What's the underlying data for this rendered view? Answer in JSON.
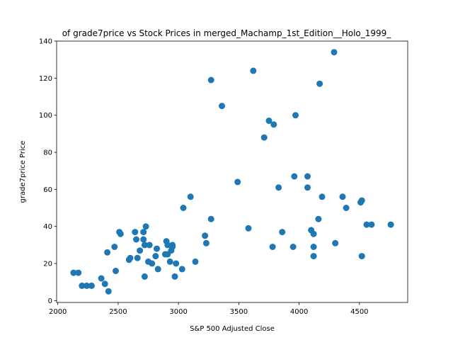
{
  "chart_data": {
    "type": "scatter",
    "title": "of grade7price vs Stock Prices in merged_Machamp_1st_Edition__Holo_1999_",
    "xlabel": "S&P 500 Adjusted Close",
    "ylabel": "grade7price Price",
    "xlim": [
      1990,
      4900
    ],
    "ylim": [
      -1,
      140
    ],
    "xticks": [
      2000,
      2500,
      3000,
      3500,
      4000,
      4500
    ],
    "yticks": [
      0,
      20,
      40,
      60,
      80,
      100,
      120,
      140
    ],
    "grid": false,
    "marker_color": "#1f77b4",
    "points": [
      [
        2130,
        15
      ],
      [
        2170,
        15
      ],
      [
        2200,
        8
      ],
      [
        2240,
        8
      ],
      [
        2280,
        8
      ],
      [
        2360,
        12
      ],
      [
        2390,
        9
      ],
      [
        2410,
        26
      ],
      [
        2420,
        5
      ],
      [
        2470,
        29
      ],
      [
        2480,
        16
      ],
      [
        2510,
        37
      ],
      [
        2520,
        36
      ],
      [
        2590,
        22
      ],
      [
        2600,
        23
      ],
      [
        2640,
        37
      ],
      [
        2650,
        33
      ],
      [
        2660,
        23
      ],
      [
        2680,
        27
      ],
      [
        2710,
        37
      ],
      [
        2710,
        33
      ],
      [
        2720,
        30
      ],
      [
        2720,
        13
      ],
      [
        2730,
        40
      ],
      [
        2750,
        21
      ],
      [
        2760,
        30
      ],
      [
        2780,
        20
      ],
      [
        2810,
        24
      ],
      [
        2820,
        28
      ],
      [
        2830,
        17
      ],
      [
        2890,
        25
      ],
      [
        2900,
        32
      ],
      [
        2910,
        30
      ],
      [
        2910,
        25
      ],
      [
        2930,
        21
      ],
      [
        2940,
        27
      ],
      [
        2950,
        30
      ],
      [
        2950,
        29
      ],
      [
        2970,
        13
      ],
      [
        2980,
        20
      ],
      [
        3030,
        17
      ],
      [
        3040,
        50
      ],
      [
        3100,
        56
      ],
      [
        3140,
        21
      ],
      [
        3220,
        35
      ],
      [
        3230,
        31
      ],
      [
        3270,
        44
      ],
      [
        3270,
        119
      ],
      [
        3360,
        105
      ],
      [
        3490,
        64
      ],
      [
        3580,
        39
      ],
      [
        3620,
        124
      ],
      [
        3710,
        88
      ],
      [
        3750,
        97
      ],
      [
        3780,
        29
      ],
      [
        3790,
        95
      ],
      [
        3830,
        61
      ],
      [
        3860,
        37
      ],
      [
        3950,
        29
      ],
      [
        3960,
        67
      ],
      [
        3970,
        100
      ],
      [
        4070,
        67
      ],
      [
        4070,
        61
      ],
      [
        4100,
        38
      ],
      [
        4120,
        36
      ],
      [
        4120,
        29
      ],
      [
        4120,
        24
      ],
      [
        4160,
        44
      ],
      [
        4170,
        117
      ],
      [
        4190,
        56
      ],
      [
        4290,
        134
      ],
      [
        4300,
        31
      ],
      [
        4360,
        56
      ],
      [
        4390,
        50
      ],
      [
        4510,
        53
      ],
      [
        4520,
        54
      ],
      [
        4520,
        24
      ],
      [
        4560,
        41
      ],
      [
        4600,
        41
      ],
      [
        4760,
        41
      ]
    ]
  }
}
